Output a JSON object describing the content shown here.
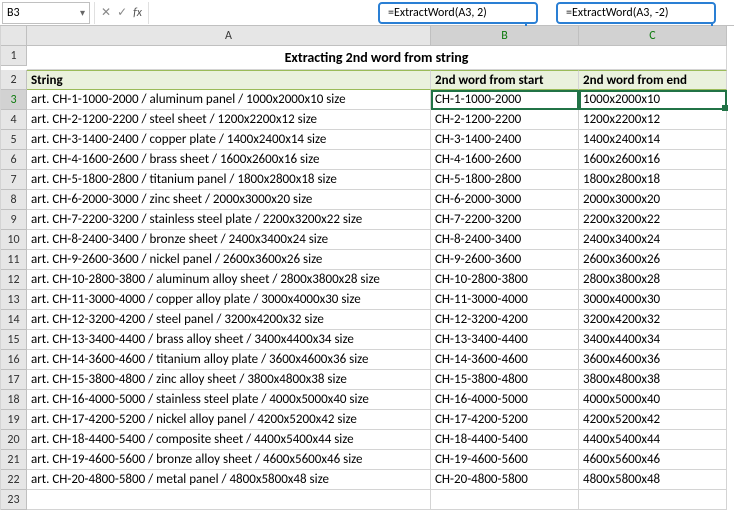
{
  "formula_bar": {
    "cell_ref": "B3",
    "formula": ""
  },
  "callouts": {
    "b": "=ExtractWord(A3,  2)",
    "c": "=ExtractWord(A3,  -2)"
  },
  "columns": [
    "A",
    "B",
    "C"
  ],
  "title": "Extracting 2nd word from string",
  "headers": {
    "a": "String",
    "b": "2nd word from start",
    "c": "2nd word from end"
  },
  "rows": [
    {
      "n": 3,
      "a": "art. CH-1-1000-2000 / aluminum panel / 1000x2000x10 size",
      "b": "CH-1-1000-2000",
      "c": "1000x2000x10"
    },
    {
      "n": 4,
      "a": "art. CH-2-1200-2200 / steel sheet / 1200x2200x12 size",
      "b": "CH-2-1200-2200",
      "c": "1200x2200x12"
    },
    {
      "n": 5,
      "a": "art. CH-3-1400-2400 / copper plate / 1400x2400x14 size",
      "b": "CH-3-1400-2400",
      "c": "1400x2400x14"
    },
    {
      "n": 6,
      "a": "art. CH-4-1600-2600 / brass sheet / 1600x2600x16 size",
      "b": "CH-4-1600-2600",
      "c": "1600x2600x16"
    },
    {
      "n": 7,
      "a": "art. CH-5-1800-2800 / titanium panel / 1800x2800x18 size",
      "b": "CH-5-1800-2800",
      "c": "1800x2800x18"
    },
    {
      "n": 8,
      "a": "art. CH-6-2000-3000 / zinc sheet / 2000x3000x20 size",
      "b": "CH-6-2000-3000",
      "c": "2000x3000x20"
    },
    {
      "n": 9,
      "a": "art. CH-7-2200-3200 / stainless steel plate / 2200x3200x22 size",
      "b": "CH-7-2200-3200",
      "c": "2200x3200x22"
    },
    {
      "n": 10,
      "a": "art. CH-8-2400-3400 / bronze sheet / 2400x3400x24 size",
      "b": "CH-8-2400-3400",
      "c": "2400x3400x24"
    },
    {
      "n": 11,
      "a": "art. CH-9-2600-3600 / nickel panel / 2600x3600x26 size",
      "b": "CH-9-2600-3600",
      "c": "2600x3600x26"
    },
    {
      "n": 12,
      "a": "art. CH-10-2800-3800 / aluminum alloy sheet / 2800x3800x28 size",
      "b": "CH-10-2800-3800",
      "c": "2800x3800x28"
    },
    {
      "n": 13,
      "a": "art. CH-11-3000-4000 / copper alloy plate / 3000x4000x30 size",
      "b": "CH-11-3000-4000",
      "c": "3000x4000x30"
    },
    {
      "n": 14,
      "a": "art. CH-12-3200-4200 / steel panel / 3200x4200x32 size",
      "b": "CH-12-3200-4200",
      "c": "3200x4200x32"
    },
    {
      "n": 15,
      "a": "art. CH-13-3400-4400 / brass alloy sheet / 3400x4400x34 size",
      "b": "CH-13-3400-4400",
      "c": "3400x4400x34"
    },
    {
      "n": 16,
      "a": "art. CH-14-3600-4600 / titanium alloy plate / 3600x4600x36 size",
      "b": "CH-14-3600-4600",
      "c": "3600x4600x36"
    },
    {
      "n": 17,
      "a": "art. CH-15-3800-4800 / zinc alloy sheet / 3800x4800x38 size",
      "b": "CH-15-3800-4800",
      "c": "3800x4800x38"
    },
    {
      "n": 18,
      "a": "art. CH-16-4000-5000 / stainless steel plate / 4000x5000x40 size",
      "b": "CH-16-4000-5000",
      "c": "4000x5000x40"
    },
    {
      "n": 19,
      "a": "art. CH-17-4200-5200 / nickel alloy panel / 4200x5200x42 size",
      "b": "CH-17-4200-5200",
      "c": "4200x5200x42"
    },
    {
      "n": 20,
      "a": "art. CH-18-4400-5400 / composite sheet / 4400x5400x44 size",
      "b": "CH-18-4400-5400",
      "c": "4400x5400x44"
    },
    {
      "n": 21,
      "a": "art. CH-19-4600-5600 / bronze alloy sheet / 4600x5600x46 size",
      "b": "CH-19-4600-5600",
      "c": "4600x5600x46"
    },
    {
      "n": 22,
      "a": "art. CH-20-4800-5800 / metal panel / 4800x5800x48 size",
      "b": "CH-20-4800-5800",
      "c": "4800x5800x48"
    }
  ],
  "selected_row": 3,
  "styling": {
    "header_bg": "#eaf1dd",
    "header_border": "#9bbb59",
    "selection_color": "#217346",
    "callout_border": "#2a7fd4",
    "grid_color": "#d4d4d4",
    "col_header_bg": "#e6e6e6"
  }
}
